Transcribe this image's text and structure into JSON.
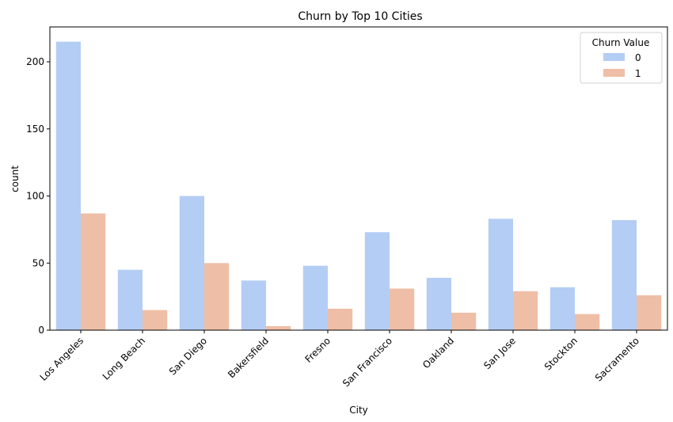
{
  "chart_data": {
    "type": "bar",
    "title": "Churn by Top 10 Cities",
    "xlabel": "City",
    "ylabel": "count",
    "categories": [
      "Los Angeles",
      "Long Beach",
      "San Diego",
      "Bakersfield",
      "Fresno",
      "San Francisco",
      "Oakland",
      "San Jose",
      "Stockton",
      "Sacramento"
    ],
    "series": [
      {
        "name": "0",
        "color": "#b4cdf5",
        "values": [
          215,
          45,
          100,
          37,
          48,
          73,
          39,
          83,
          32,
          82
        ]
      },
      {
        "name": "1",
        "color": "#efbea6",
        "values": [
          87,
          15,
          50,
          3,
          16,
          31,
          13,
          29,
          12,
          26
        ]
      }
    ],
    "ylim": [
      0,
      226
    ],
    "yticks": [
      0,
      50,
      100,
      150,
      200
    ],
    "legend": {
      "title": "Churn Value",
      "placement": "top-right"
    },
    "grid": false
  }
}
